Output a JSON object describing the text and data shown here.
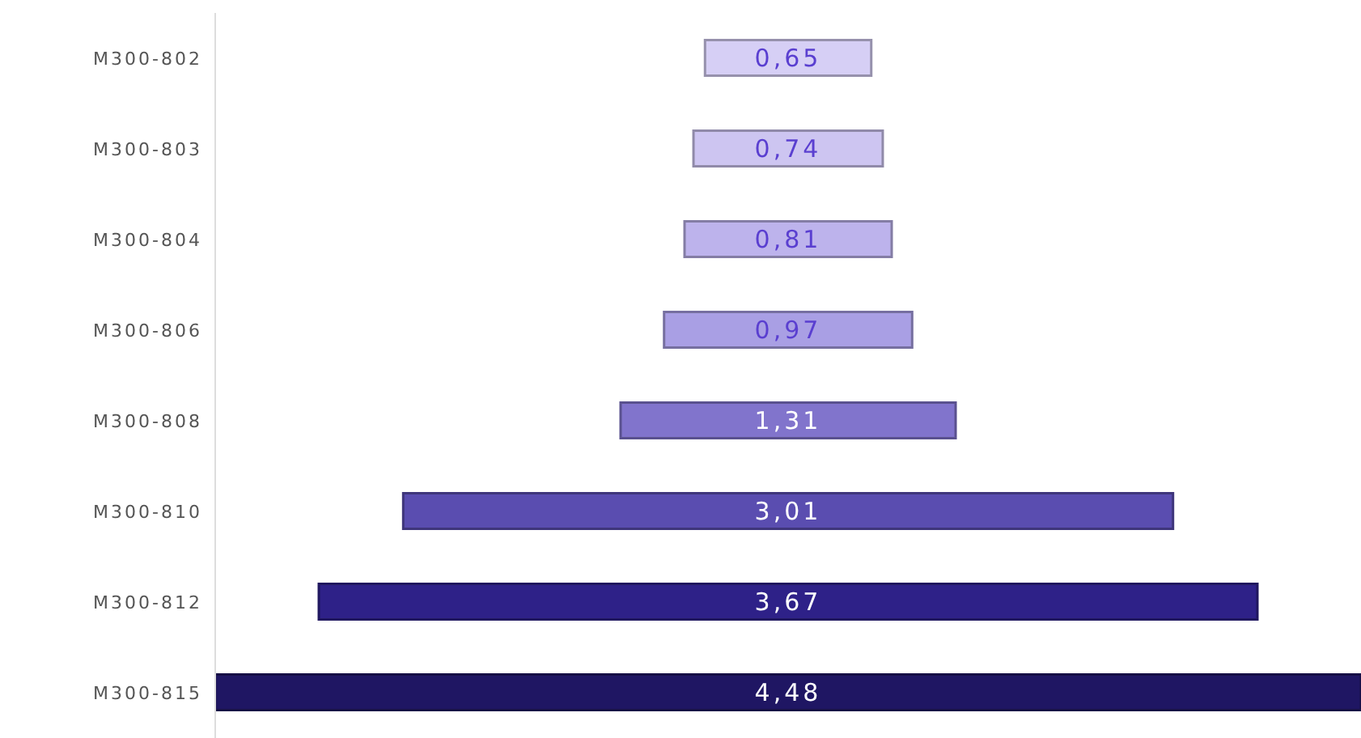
{
  "chart_data": {
    "type": "other",
    "categories": [
      "M300-802",
      "M300-803",
      "M300-804",
      "M300-806",
      "M300-808",
      "M300-810",
      "M300-812",
      "M300-815"
    ],
    "values": [
      0.65,
      0.74,
      0.81,
      0.97,
      1.31,
      3.01,
      3.67,
      4.48
    ],
    "value_labels": [
      "0,65",
      "0,74",
      "0,81",
      "0,97",
      "1,31",
      "3,01",
      "3,67",
      "4,48"
    ],
    "colors": [
      "#d6cff5",
      "#cdc5f1",
      "#bdb3ec",
      "#a99fe4",
      "#8174cc",
      "#5a4db0",
      "#2e2188",
      "#1f1663"
    ]
  }
}
